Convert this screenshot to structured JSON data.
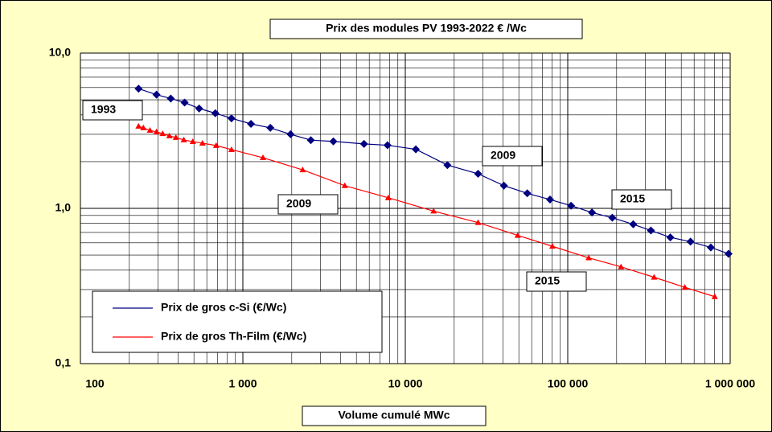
{
  "chart_data": {
    "type": "line",
    "title": "Prix des modules PV  1993-2022  € /Wc",
    "x_label": "Volume cumulé MWc",
    "xscale": "log",
    "yscale": "log",
    "grid": true,
    "minor_grid": true,
    "legend": "lower left",
    "xlim": [
      100,
      1000000
    ],
    "ylim": [
      0.1,
      10
    ],
    "xticks": [
      100,
      {
        "value": 1000,
        "label": "1 000"
      },
      {
        "value": 10000,
        "label": "10 000"
      },
      {
        "value": 100000,
        "label": "100 000"
      },
      {
        "value": 1000000,
        "label": "1 000 000"
      }
    ],
    "yticks": [
      {
        "value": 0.1,
        "label": "0,1"
      },
      {
        "value": 1,
        "label": "1,0"
      },
      {
        "value": 10,
        "label": "10,0"
      }
    ],
    "series": [
      {
        "name": "Prix de gros c-Si (€/Wc)",
        "color": "#000080",
        "marker": "diamond",
        "x": [
          228,
          294,
          360,
          438,
          538,
          677,
          851,
          1122,
          1476,
          1966,
          2620,
          3606,
          5570,
          7770,
          11610,
          18160,
          28060,
          40470,
          56360,
          77800,
          104800,
          141000,
          188000,
          253000,
          325000,
          428000,
          570000,
          760000,
          977000
        ],
        "values": [
          5.9,
          5.4,
          5.1,
          4.8,
          4.4,
          4.1,
          3.8,
          3.5,
          3.3,
          3.0,
          2.75,
          2.7,
          2.6,
          2.55,
          2.4,
          1.9,
          1.67,
          1.4,
          1.25,
          1.14,
          1.04,
          0.94,
          0.87,
          0.79,
          0.72,
          0.65,
          0.61,
          0.56,
          0.51
        ]
      },
      {
        "name": "Prix de gros Th-Film  (€/Wc)",
        "color": "#ff0000",
        "marker": "triangle",
        "x": [
          228,
          244,
          268,
          294,
          321,
          353,
          387,
          433,
          492,
          564,
          685,
          851,
          1330,
          2335,
          4240,
          7860,
          14940,
          28060,
          49200,
          80400,
          134600,
          212800,
          340000,
          526000,
          803000
        ],
        "values": [
          3.38,
          3.3,
          3.18,
          3.11,
          3.03,
          2.93,
          2.86,
          2.76,
          2.69,
          2.63,
          2.54,
          2.39,
          2.12,
          1.77,
          1.4,
          1.17,
          0.96,
          0.81,
          0.67,
          0.57,
          0.48,
          0.42,
          0.36,
          0.31,
          0.27
        ]
      }
    ],
    "annotations": [
      "1993",
      "2009",
      "2009",
      "2015",
      "2015"
    ]
  }
}
